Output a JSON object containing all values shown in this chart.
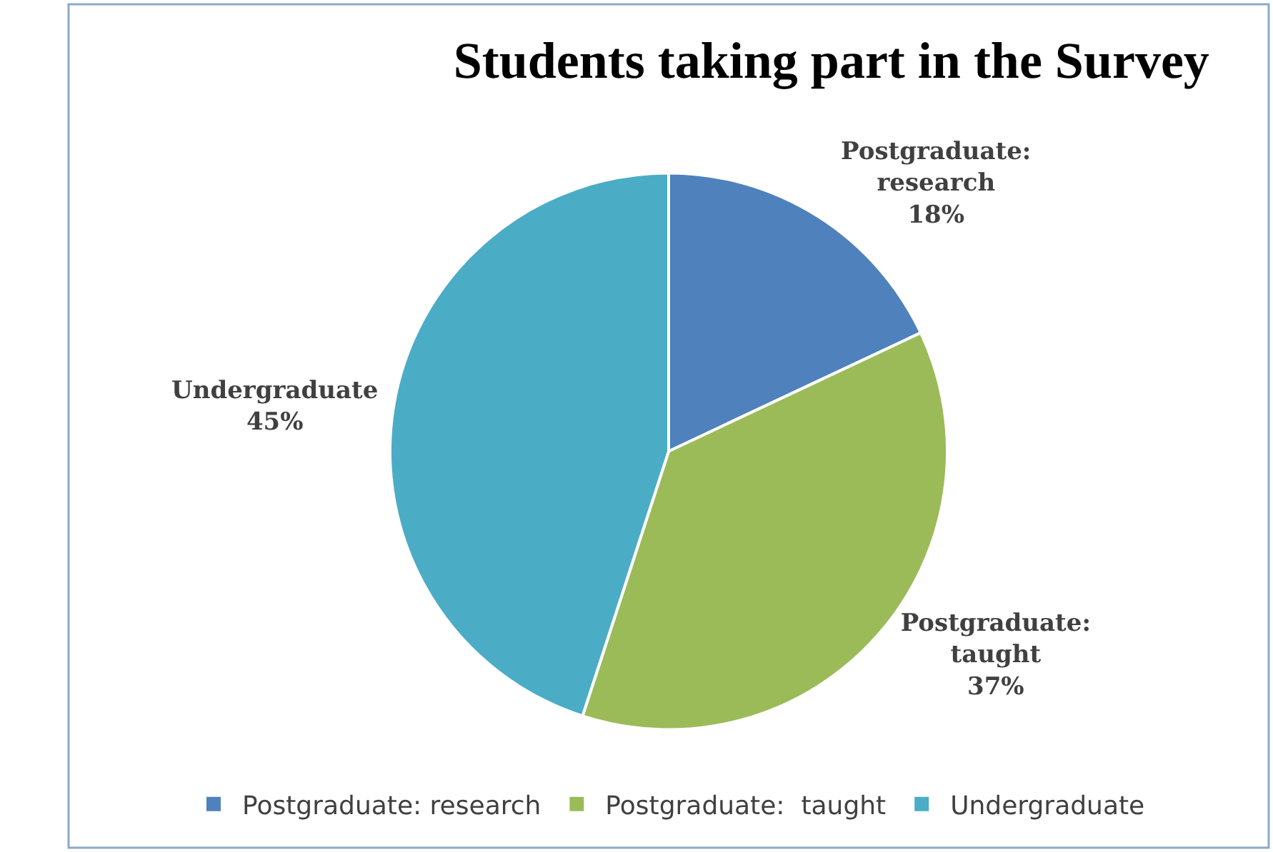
{
  "chart_data": {
    "type": "pie",
    "title": "Students taking part in the Survey",
    "categories": [
      "Postgraduate: research",
      "Postgraduate:  taught",
      "Undergraduate"
    ],
    "values": [
      18,
      37,
      45
    ],
    "colors": [
      "#4f81bd",
      "#9bbb59",
      "#4bacc6"
    ],
    "value_labels": [
      "18%",
      "37%",
      "45%"
    ],
    "legend": "bottom"
  }
}
